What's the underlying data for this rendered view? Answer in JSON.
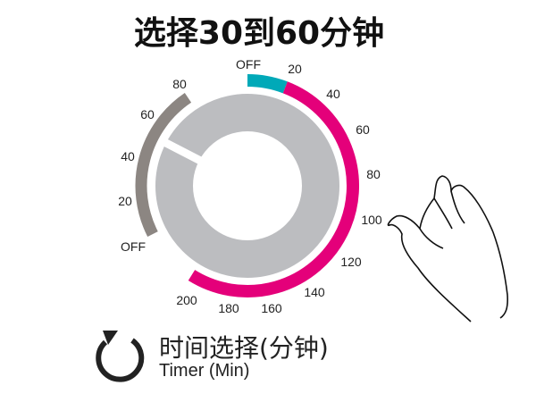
{
  "title": "选择30到60分钟",
  "dial": {
    "right_scale": [
      "OFF",
      "20",
      "40",
      "60",
      "80",
      "100",
      "120",
      "140",
      "160",
      "180",
      "200"
    ],
    "left_scale": [
      "OFF",
      "20",
      "40",
      "60",
      "80"
    ],
    "colors": {
      "off_segment": "#00a9b8",
      "timed_arc": "#e4007a",
      "left_arc": "#8c8682",
      "knob": "#bcbdc0"
    }
  },
  "legend": {
    "icon": "rotate-clockwise-icon",
    "label_cn": "时间选择(分钟)",
    "label_en": "Timer (Min)"
  },
  "hand_icon": "pointing-hand-icon"
}
